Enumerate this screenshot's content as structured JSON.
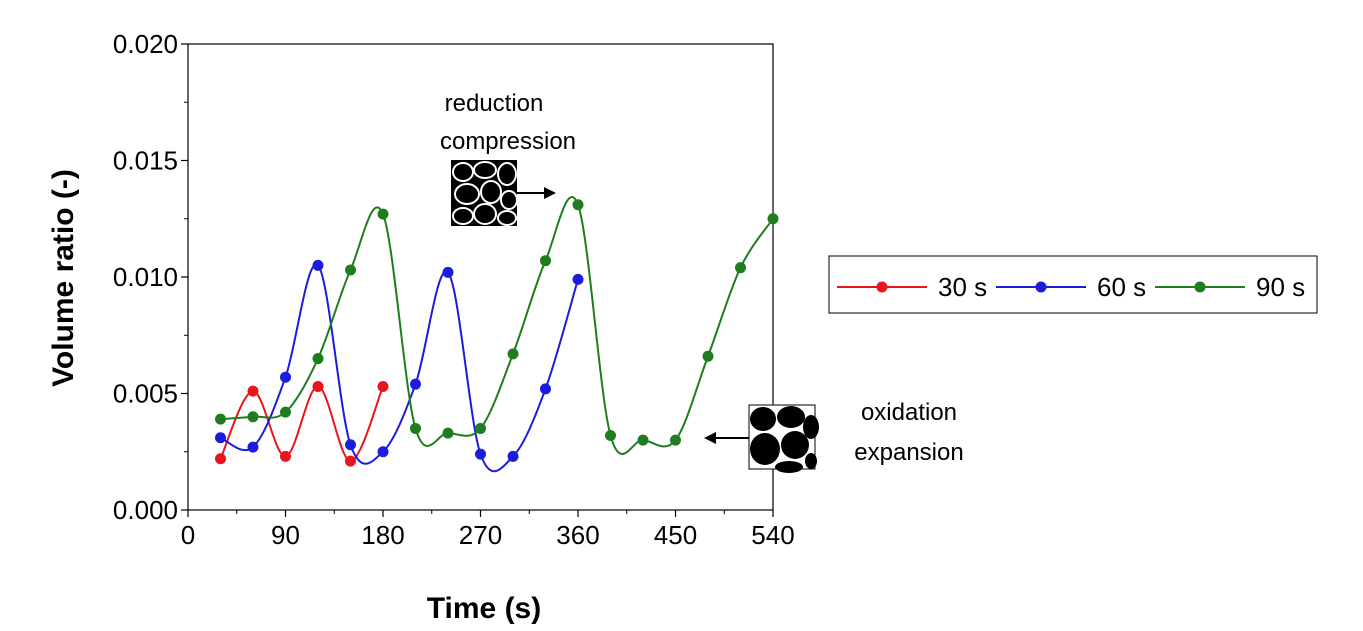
{
  "chart_data": {
    "type": "line",
    "xlabel": "Time (s)",
    "ylabel": "Volume ratio (-)",
    "xlim": [
      0,
      540
    ],
    "ylim": [
      0,
      0.02
    ],
    "xticks": [
      "0",
      "90",
      "180",
      "270",
      "360",
      "450",
      "540"
    ],
    "yticks": [
      "0.000",
      "0.005",
      "0.010",
      "0.015",
      "0.020"
    ],
    "grid": false,
    "legend_position": "right",
    "series": [
      {
        "name": "30 s",
        "color": "#e8141e",
        "points": [
          [
            30,
            0.0022
          ],
          [
            60,
            0.0051
          ],
          [
            90,
            0.0023
          ],
          [
            120,
            0.0053
          ],
          [
            150,
            0.0021
          ],
          [
            180,
            0.0053
          ]
        ]
      },
      {
        "name": "60 s",
        "color": "#1c1cdc",
        "points": [
          [
            30,
            0.0031
          ],
          [
            60,
            0.0027
          ],
          [
            90,
            0.0057
          ],
          [
            120,
            0.0105
          ],
          [
            150,
            0.0028
          ],
          [
            180,
            0.0025
          ],
          [
            210,
            0.0054
          ],
          [
            240,
            0.0102
          ],
          [
            270,
            0.0024
          ],
          [
            300,
            0.0023
          ],
          [
            330,
            0.0052
          ],
          [
            360,
            0.0099
          ]
        ]
      },
      {
        "name": "90 s",
        "color": "#1f7d1f",
        "points": [
          [
            30,
            0.0039
          ],
          [
            60,
            0.004
          ],
          [
            90,
            0.0042
          ],
          [
            120,
            0.0065
          ],
          [
            150,
            0.0103
          ],
          [
            180,
            0.0127
          ],
          [
            210,
            0.0035
          ],
          [
            240,
            0.0033
          ],
          [
            270,
            0.0035
          ],
          [
            300,
            0.0067
          ],
          [
            330,
            0.0107
          ],
          [
            360,
            0.0131
          ],
          [
            390,
            0.0032
          ],
          [
            420,
            0.003
          ],
          [
            450,
            0.003
          ],
          [
            480,
            0.0066
          ],
          [
            510,
            0.0104
          ],
          [
            540,
            0.0125
          ]
        ]
      }
    ],
    "annotations": [
      {
        "lines": [
          "reduction",
          "compression"
        ],
        "icon": "particle-micrograph-icon",
        "arrow": "right-arrow-icon"
      },
      {
        "lines": [
          "oxidation",
          "expansion"
        ],
        "icon": "particle-micrograph-icon",
        "arrow": "left-arrow-icon"
      }
    ]
  }
}
